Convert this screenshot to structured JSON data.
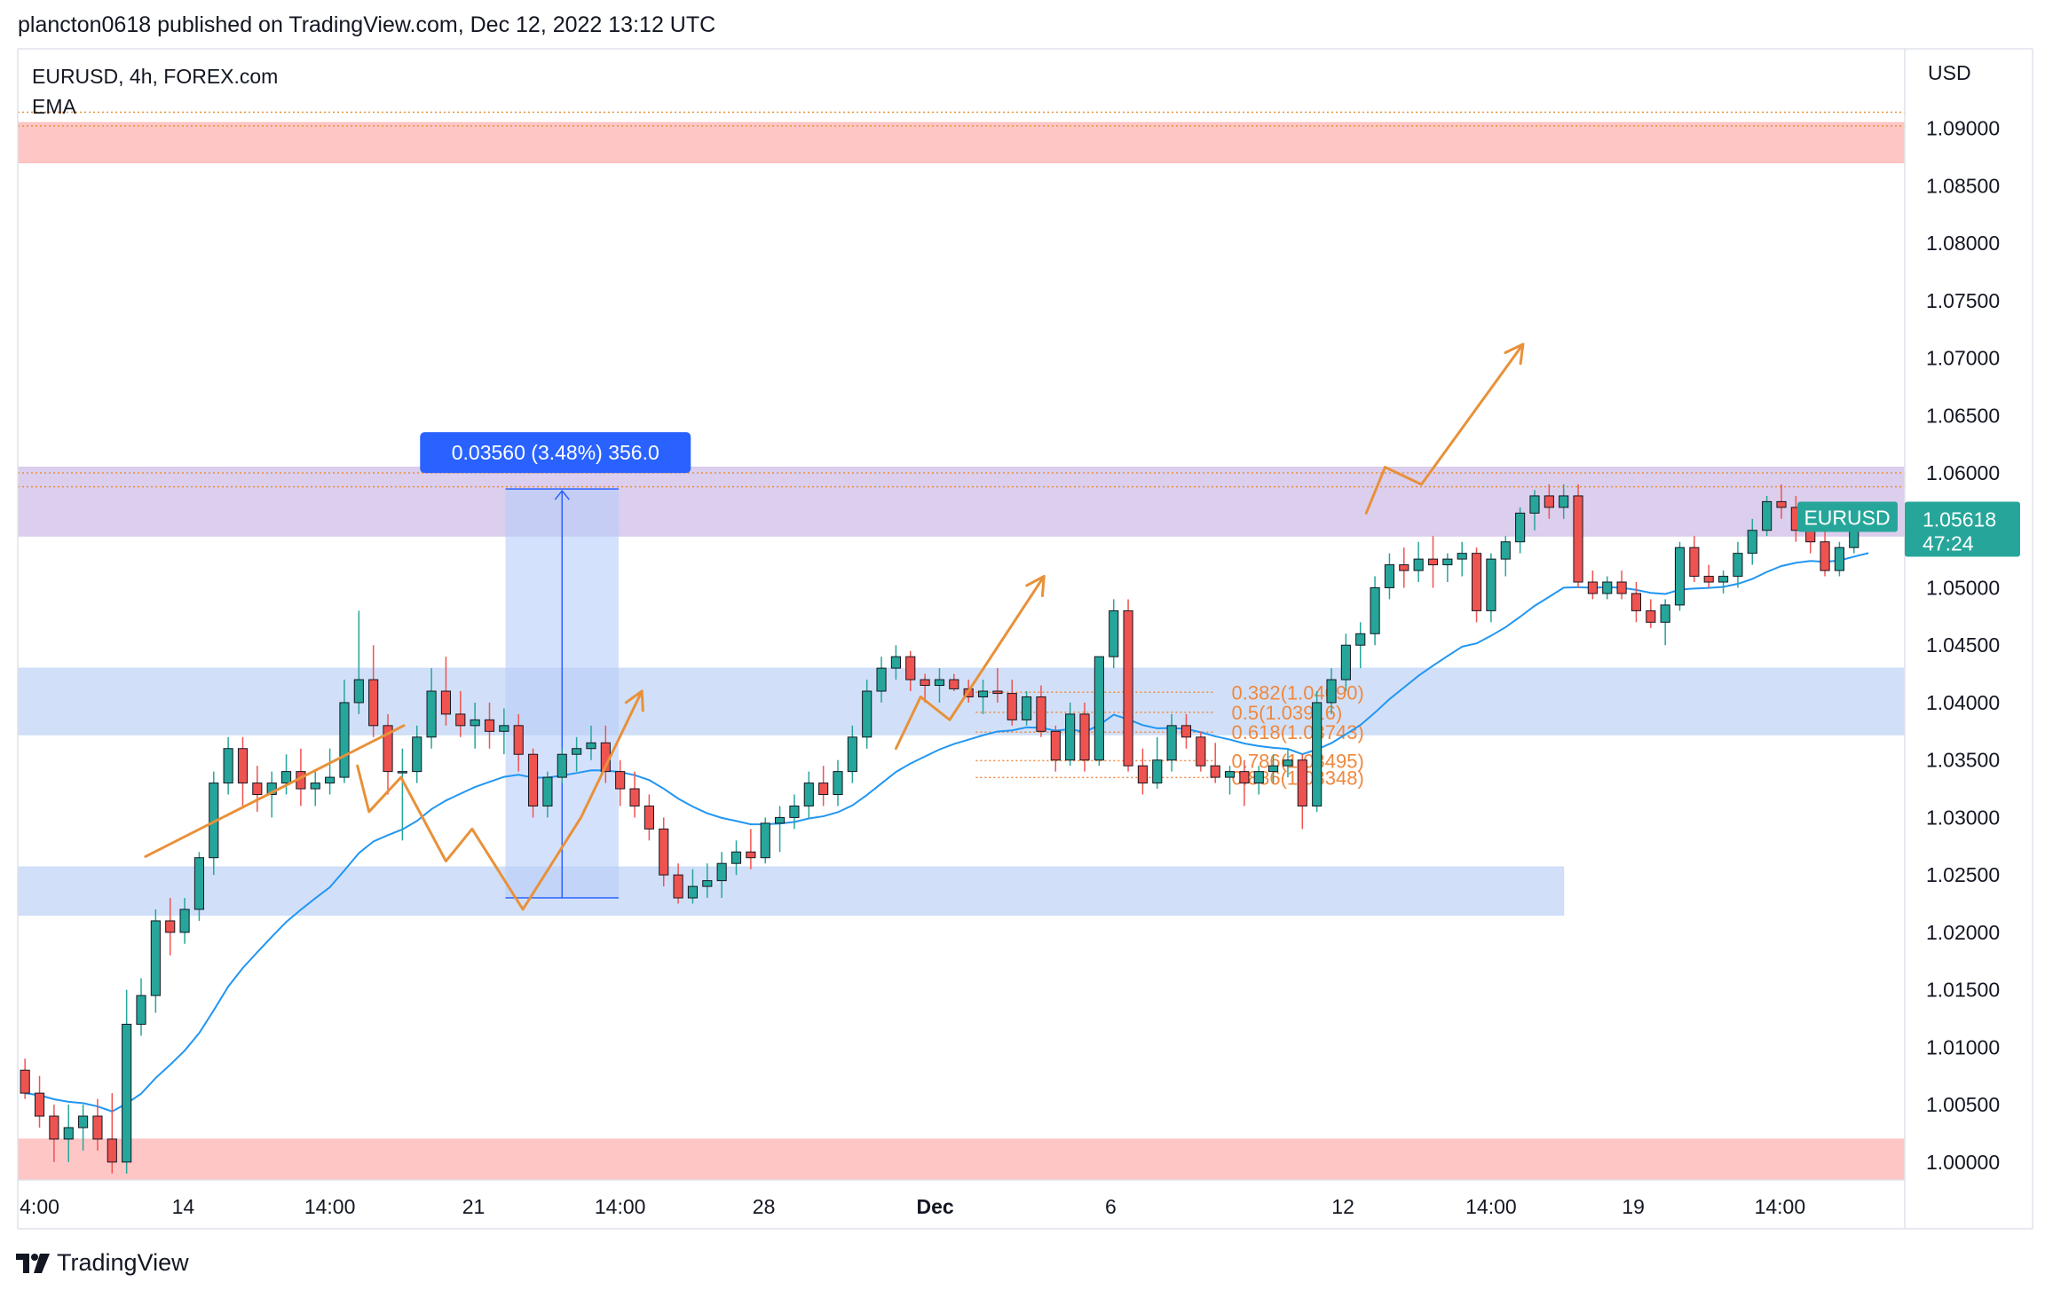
{
  "header": {
    "published_line": "plancton0618 published on TradingView.com, Dec 12, 2022 13:12 UTC"
  },
  "footer": {
    "brand": "TradingView"
  },
  "colors": {
    "up_candle": "#26a69a",
    "down_candle": "#ef5350",
    "ema": "#2196f3",
    "drawing_orange": "#e8913a",
    "fib_orange": "#f0883e",
    "supply_zone": "#ffbcbc",
    "resistance_zone": "#d6c6ea",
    "support_zone": "#c9dbf7",
    "measure_fill": "#b8cdfa",
    "measure_label_bg": "#2962ff",
    "price_tag": "#26a69a"
  },
  "chart_data": {
    "type": "candlestick",
    "title": "EURUSD, 4h, FOREX.com",
    "indicator": "EMA",
    "symbol": "EURUSD",
    "last_price": "1.05618",
    "time_to_close": "47:24",
    "currency": "USD",
    "ylim": [
      0.99844,
      1.09592
    ],
    "y_ticks": [
      "1.09000",
      "1.08500",
      "1.08000",
      "1.07500",
      "1.07000",
      "1.06500",
      "1.06000",
      "1.05500",
      "1.05000",
      "1.04500",
      "1.04000",
      "1.03500",
      "1.03000",
      "1.02500",
      "1.02000",
      "1.01500",
      "1.01000",
      "1.00500",
      "1.00000"
    ],
    "xlim": [
      0,
      130
    ],
    "x_ticks": [
      {
        "label": "4:00",
        "x": 1.5
      },
      {
        "label": "14",
        "x": 11.4
      },
      {
        "label": "14:00",
        "x": 21.5
      },
      {
        "label": "21",
        "x": 31.4
      },
      {
        "label": "14:00",
        "x": 41.5
      },
      {
        "label": "28",
        "x": 51.4
      },
      {
        "label": "Dec",
        "x": 63.2,
        "bold": true
      },
      {
        "label": "6",
        "x": 75.3
      },
      {
        "label": "12",
        "x": 91.3
      },
      {
        "label": "14:00",
        "x": 101.5
      },
      {
        "label": "19",
        "x": 111.3
      },
      {
        "label": "14:00",
        "x": 121.4
      }
    ],
    "candles": [
      [
        1.008,
        1.009,
        1.0055,
        1.006
      ],
      [
        1.006,
        1.0075,
        1.003,
        1.004
      ],
      [
        1.004,
        1.005,
        1.0,
        1.002
      ],
      [
        1.002,
        1.005,
        1.0,
        1.003
      ],
      [
        1.003,
        1.005,
        1.001,
        1.004
      ],
      [
        1.004,
        1.0055,
        1.001,
        1.002
      ],
      [
        1.002,
        1.006,
        0.999,
        1.0
      ],
      [
        1.0,
        1.015,
        0.999,
        1.012
      ],
      [
        1.012,
        1.016,
        1.011,
        1.0145
      ],
      [
        1.0145,
        1.022,
        1.013,
        1.021
      ],
      [
        1.021,
        1.023,
        1.018,
        1.02
      ],
      [
        1.02,
        1.023,
        1.019,
        1.022
      ],
      [
        1.022,
        1.027,
        1.021,
        1.0265
      ],
      [
        1.0265,
        1.034,
        1.025,
        1.033
      ],
      [
        1.033,
        1.037,
        1.032,
        1.036
      ],
      [
        1.036,
        1.037,
        1.031,
        1.033
      ],
      [
        1.033,
        1.0345,
        1.0305,
        1.032
      ],
      [
        1.032,
        1.034,
        1.03,
        1.033
      ],
      [
        1.033,
        1.0355,
        1.032,
        1.034
      ],
      [
        1.034,
        1.036,
        1.031,
        1.0325
      ],
      [
        1.0325,
        1.034,
        1.031,
        1.033
      ],
      [
        1.033,
        1.036,
        1.032,
        1.0335
      ],
      [
        1.0335,
        1.042,
        1.033,
        1.04
      ],
      [
        1.04,
        1.048,
        1.039,
        1.042
      ],
      [
        1.042,
        1.045,
        1.037,
        1.038
      ],
      [
        1.038,
        1.039,
        1.032,
        1.034
      ],
      [
        1.034,
        1.036,
        1.028,
        1.034
      ],
      [
        1.034,
        1.038,
        1.033,
        1.037
      ],
      [
        1.037,
        1.043,
        1.036,
        1.041
      ],
      [
        1.041,
        1.044,
        1.038,
        1.039
      ],
      [
        1.039,
        1.041,
        1.037,
        1.038
      ],
      [
        1.038,
        1.04,
        1.036,
        1.0385
      ],
      [
        1.0385,
        1.04,
        1.036,
        1.0375
      ],
      [
        1.0375,
        1.0395,
        1.0355,
        1.038
      ],
      [
        1.038,
        1.039,
        1.034,
        1.0355
      ],
      [
        1.0355,
        1.036,
        1.03,
        1.031
      ],
      [
        1.031,
        1.034,
        1.03,
        1.0335
      ],
      [
        1.0335,
        1.036,
        1.033,
        1.0355
      ],
      [
        1.0355,
        1.037,
        1.034,
        1.036
      ],
      [
        1.036,
        1.038,
        1.035,
        1.0365
      ],
      [
        1.0365,
        1.038,
        1.033,
        1.034
      ],
      [
        1.034,
        1.035,
        1.031,
        1.0325
      ],
      [
        1.0325,
        1.034,
        1.03,
        1.031
      ],
      [
        1.031,
        1.032,
        1.028,
        1.029
      ],
      [
        1.029,
        1.03,
        1.024,
        1.025
      ],
      [
        1.025,
        1.026,
        1.0225,
        1.023
      ],
      [
        1.023,
        1.0255,
        1.0225,
        1.024
      ],
      [
        1.024,
        1.026,
        1.023,
        1.0245
      ],
      [
        1.0245,
        1.027,
        1.023,
        1.026
      ],
      [
        1.026,
        1.028,
        1.025,
        1.027
      ],
      [
        1.027,
        1.029,
        1.0255,
        1.0265
      ],
      [
        1.0265,
        1.03,
        1.026,
        1.0295
      ],
      [
        1.0295,
        1.031,
        1.027,
        1.03
      ],
      [
        1.03,
        1.032,
        1.029,
        1.031
      ],
      [
        1.031,
        1.034,
        1.03,
        1.033
      ],
      [
        1.033,
        1.0345,
        1.031,
        1.032
      ],
      [
        1.032,
        1.035,
        1.031,
        1.034
      ],
      [
        1.034,
        1.038,
        1.033,
        1.037
      ],
      [
        1.037,
        1.042,
        1.036,
        1.041
      ],
      [
        1.041,
        1.044,
        1.04,
        1.043
      ],
      [
        1.043,
        1.045,
        1.042,
        1.044
      ],
      [
        1.044,
        1.0445,
        1.041,
        1.042
      ],
      [
        1.042,
        1.0425,
        1.04,
        1.0415
      ],
      [
        1.0415,
        1.043,
        1.04,
        1.042
      ],
      [
        1.042,
        1.0425,
        1.041,
        1.0412
      ],
      [
        1.0412,
        1.042,
        1.04,
        1.0405
      ],
      [
        1.0405,
        1.042,
        1.039,
        1.041
      ],
      [
        1.041,
        1.043,
        1.04,
        1.0408
      ],
      [
        1.0408,
        1.042,
        1.038,
        1.0385
      ],
      [
        1.0385,
        1.041,
        1.038,
        1.0405
      ],
      [
        1.0405,
        1.0415,
        1.037,
        1.0375
      ],
      [
        1.0375,
        1.038,
        1.034,
        1.035
      ],
      [
        1.035,
        1.04,
        1.0345,
        1.039
      ],
      [
        1.039,
        1.04,
        1.034,
        1.035
      ],
      [
        1.035,
        1.044,
        1.0345,
        1.044
      ],
      [
        1.044,
        1.049,
        1.043,
        1.048
      ],
      [
        1.048,
        1.049,
        1.034,
        1.0345
      ],
      [
        1.0345,
        1.036,
        1.032,
        1.033
      ],
      [
        1.033,
        1.037,
        1.0325,
        1.035
      ],
      [
        1.035,
        1.039,
        1.034,
        1.038
      ],
      [
        1.038,
        1.039,
        1.036,
        1.037
      ],
      [
        1.037,
        1.0375,
        1.034,
        1.0345
      ],
      [
        1.0345,
        1.0365,
        1.033,
        1.0335
      ],
      [
        1.0335,
        1.0345,
        1.032,
        1.034
      ],
      [
        1.034,
        1.035,
        1.031,
        1.033
      ],
      [
        1.033,
        1.0345,
        1.032,
        1.034
      ],
      [
        1.034,
        1.0355,
        1.033,
        1.0345
      ],
      [
        1.0345,
        1.036,
        1.0335,
        1.035
      ],
      [
        1.035,
        1.0355,
        1.029,
        1.031
      ],
      [
        1.031,
        1.041,
        1.0305,
        1.04
      ],
      [
        1.04,
        1.043,
        1.039,
        1.042
      ],
      [
        1.042,
        1.046,
        1.041,
        1.045
      ],
      [
        1.045,
        1.047,
        1.043,
        1.046
      ],
      [
        1.046,
        1.051,
        1.045,
        1.05
      ],
      [
        1.05,
        1.053,
        1.049,
        1.052
      ],
      [
        1.052,
        1.0535,
        1.05,
        1.0515
      ],
      [
        1.0515,
        1.054,
        1.0505,
        1.0525
      ],
      [
        1.0525,
        1.0545,
        1.05,
        1.052
      ],
      [
        1.052,
        1.053,
        1.0505,
        1.0525
      ],
      [
        1.0525,
        1.054,
        1.051,
        1.053
      ],
      [
        1.053,
        1.0535,
        1.047,
        1.048
      ],
      [
        1.048,
        1.053,
        1.047,
        1.0525
      ],
      [
        1.0525,
        1.0545,
        1.051,
        1.054
      ],
      [
        1.054,
        1.057,
        1.053,
        1.0565
      ],
      [
        1.0565,
        1.0585,
        1.055,
        1.058
      ],
      [
        1.058,
        1.059,
        1.056,
        1.057
      ],
      [
        1.057,
        1.059,
        1.056,
        1.058
      ],
      [
        1.058,
        1.059,
        1.05,
        1.0505
      ],
      [
        1.0505,
        1.0515,
        1.049,
        1.0495
      ],
      [
        1.0495,
        1.051,
        1.049,
        1.0505
      ],
      [
        1.0505,
        1.0515,
        1.049,
        1.0495
      ],
      [
        1.0495,
        1.0505,
        1.047,
        1.048
      ],
      [
        1.048,
        1.049,
        1.0465,
        1.047
      ],
      [
        1.047,
        1.049,
        1.045,
        1.0485
      ],
      [
        1.0485,
        1.054,
        1.048,
        1.0535
      ],
      [
        1.0535,
        1.0545,
        1.0505,
        1.051
      ],
      [
        1.051,
        1.052,
        1.05,
        1.0505
      ],
      [
        1.0505,
        1.0515,
        1.0495,
        1.051
      ],
      [
        1.051,
        1.054,
        1.05,
        1.053
      ],
      [
        1.053,
        1.056,
        1.052,
        1.055
      ],
      [
        1.055,
        1.058,
        1.0545,
        1.0575
      ],
      [
        1.0575,
        1.059,
        1.056,
        1.057
      ],
      [
        1.057,
        1.058,
        1.054,
        1.055
      ],
      [
        1.055,
        1.056,
        1.053,
        1.054
      ],
      [
        1.054,
        1.055,
        1.051,
        1.0515
      ],
      [
        1.0515,
        1.054,
        1.051,
        1.0535
      ],
      [
        1.0535,
        1.0565,
        1.053,
        1.056
      ],
      [
        1.056,
        1.057,
        1.0555,
        1.0562
      ]
    ],
    "zones": [
      {
        "name": "supply-zone-top",
        "x0": 0,
        "x1": 130,
        "y0": 1.087,
        "y1": 1.0905,
        "color": "#ffbcbc"
      },
      {
        "name": "demand-zone-bottom",
        "x0": 0,
        "x1": 130,
        "y0": 0.9985,
        "y1": 1.002,
        "color": "#ffbcbc"
      },
      {
        "name": "resistance-zone",
        "x0": 0,
        "x1": 130,
        "y0": 1.0545,
        "y1": 1.0605,
        "color": "#d6c6ea"
      },
      {
        "name": "support-zone-mid",
        "x0": 0,
        "x1": 130,
        "y0": 1.0372,
        "y1": 1.043,
        "color": "#c9dbf7"
      },
      {
        "name": "support-zone-low",
        "x0": 0,
        "x1": 106.5,
        "y0": 1.0215,
        "y1": 1.0257,
        "color": "#c9dbf7"
      }
    ],
    "dotted_levels": [
      1.0914,
      1.0902,
      1.06,
      1.0588
    ],
    "fibonacci": {
      "x_start": 66,
      "x_end": 82.4,
      "levels": [
        {
          "label": "0.382(1.04090)",
          "y": 1.0409
        },
        {
          "label": "0.5(1.03916)",
          "y": 1.03916
        },
        {
          "label": "0.618(1.03743)",
          "y": 1.03743
        },
        {
          "label": "0.786(1.03495)",
          "y": 1.03495
        },
        {
          "label": "0.886(1.03348)",
          "y": 1.03348
        }
      ]
    },
    "measure": {
      "x0": 33.6,
      "x1": 41.4,
      "y0": 1.023,
      "y1": 1.0586,
      "label": "0.03560 (3.48%) 356.0"
    },
    "drawings": [
      {
        "name": "trendline-1",
        "points": [
          [
            8.8,
            1.0266
          ],
          [
            26.6,
            1.038
          ]
        ]
      },
      {
        "name": "zigzag-1",
        "points": [
          [
            23.4,
            1.0345
          ],
          [
            24.2,
            1.0305
          ],
          [
            26.4,
            1.0335
          ],
          [
            29.5,
            1.0262
          ],
          [
            31.3,
            1.029
          ],
          [
            34.8,
            1.022
          ],
          [
            38.8,
            1.03
          ],
          [
            43,
            1.041
          ]
        ]
      },
      {
        "name": "zigzag-2",
        "points": [
          [
            60.5,
            1.036
          ],
          [
            62.2,
            1.0405
          ],
          [
            64.2,
            1.0385
          ],
          [
            70.7,
            1.051
          ]
        ]
      },
      {
        "name": "projection",
        "points": [
          [
            92.9,
            1.0565
          ],
          [
            94.2,
            1.0605
          ],
          [
            96.7,
            1.059
          ],
          [
            103.7,
            1.0712
          ]
        ]
      }
    ]
  }
}
